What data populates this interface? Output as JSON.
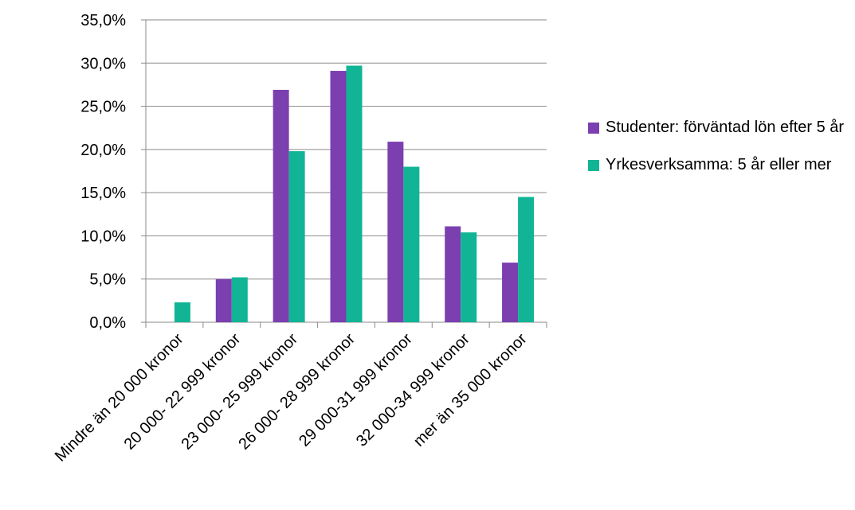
{
  "chart_data": {
    "type": "bar",
    "categories": [
      "Mindre än 20 000 kronor",
      "20 000- 22 999 kronor",
      "23 000- 25 999 kronor",
      "26 000- 28 999 kronor",
      "29 000-31 999 kronor",
      "32 000-34 999 kronor",
      "mer än 35 000 kronor"
    ],
    "series": [
      {
        "name": "Studenter: förväntad lön efter 5 år",
        "color": "#7b3fb0",
        "values": [
          0.0,
          5.0,
          26.9,
          29.1,
          20.9,
          11.1,
          6.9
        ]
      },
      {
        "name": "Yrkesverksamma: 5 år eller mer",
        "color": "#11b596",
        "values": [
          2.3,
          5.2,
          19.8,
          29.7,
          18.0,
          10.4,
          14.5
        ]
      }
    ],
    "yticks": [
      "0,0%",
      "5,0%",
      "10,0%",
      "15,0%",
      "20,0%",
      "25,0%",
      "30,0%",
      "35,0%"
    ],
    "ylim": [
      0,
      35
    ],
    "grid": true,
    "legend_position": "right"
  }
}
